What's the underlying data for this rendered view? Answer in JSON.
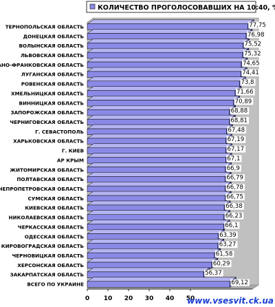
{
  "chart_data": {
    "type": "bar",
    "orientation": "horizontal",
    "categories": [
      "ТЕРНОПОЛЬСКАЯ ОБЛАСТЬ",
      "ДОНЕЦКАЯ ОБЛАСТЬ",
      "ВОЛЫНСКАЯ ОБЛАСТЬ",
      "ЛЬВОВСКАЯ ОБЛАСТЬ",
      "ИВАНО-ФРАНКОВСКАЯ ОБЛАСТЬ",
      "ЛУГАНСКАЯ ОБЛАСТЬ",
      "РОВЕНСКАЯ ОБЛАСТЬ",
      "ХМЕЛЬНИЦКАЯ ОБЛАСТЬ",
      "ВИННИЦКАЯ ОБЛАСТЬ",
      "ЗАПОРОЖСКАЯ ОБЛАСТЬ",
      "ЧЕРНИГОВСКАЯ ОБЛАСТЬ",
      "Г. СЕВАСТОПОЛЬ",
      "ХАРЬКОВСКАЯ ОБЛАСТЬ",
      "Г. КИЕВ",
      "АР КРЫМ",
      "ЖИТОМИРСКАЯ ОБЛАСТЬ",
      "ПОЛТАВСКАЯ ОБЛАСТЬ",
      "ДНЕПРОПЕТРОВСКАЯ ОБЛАСТЬ",
      "СУМСКАЯ ОБЛАСТЬ",
      "КИЕВСКАЯ ОБЛАСТЬ",
      "НИКОЛАЕВСКАЯ ОБЛАСТЬ",
      "ЧЕРКАССКАЯ ОБЛАСТЬ",
      "ОДЕССКАЯ ОБЛАСТЬ",
      "КИРОВОГРАДСКАЯ ОБЛАСТЬ",
      "ЧЕРНОВИЦКАЯ ОБЛАСТЬ",
      "ХЕРСОНСКАЯ ОБЛАСТЬ",
      "ЗАКАРПАТСКАЯ ОБЛАСТЬ",
      "ВСЕГО ПО УКРАИНЕ"
    ],
    "values": [
      77.75,
      76.98,
      75.52,
      75.32,
      74.65,
      74.41,
      73.8,
      71.66,
      70.89,
      68.88,
      68.81,
      67.48,
      67.19,
      67.17,
      67.1,
      66.9,
      66.79,
      66.78,
      66.75,
      66.38,
      66.23,
      66.1,
      63.39,
      63.27,
      61.58,
      60.29,
      56.37,
      69.12
    ],
    "value_labels": [
      "77,75",
      "76,98",
      "75,52",
      "75,32",
      "74,65",
      "74,41",
      "73,8",
      "71,66",
      "70,89",
      "68,88",
      "68,81",
      "67,48",
      "67,19",
      "67,17",
      "67,1",
      "66,9",
      "66,79",
      "66,78",
      "66,75",
      "66,38",
      "66,23",
      "66,1",
      "63,39",
      "63,27",
      "61,58",
      "60,29",
      "56,37",
      "69,12"
    ],
    "xticks": [
      0,
      10,
      20,
      30,
      40,
      50
    ],
    "xlim": [
      0,
      80
    ],
    "legend": {
      "label": "КОЛИЧЕСТВО ПРОГОЛОСОВАВШИХ НА 10:40, %",
      "placement": "top"
    },
    "grid": false,
    "style": "3d",
    "colors": {
      "bar_front": "#8a8ae6",
      "bar_top": "#b4b4f2",
      "bar_side": "#4a4aa8",
      "wall": "#c0c0c0",
      "floor": "#a8a8a8",
      "edge": "#000000"
    }
  },
  "watermark": {
    "text": "www.vsesvit.ck.ua",
    "color": "#1a3fd0"
  }
}
